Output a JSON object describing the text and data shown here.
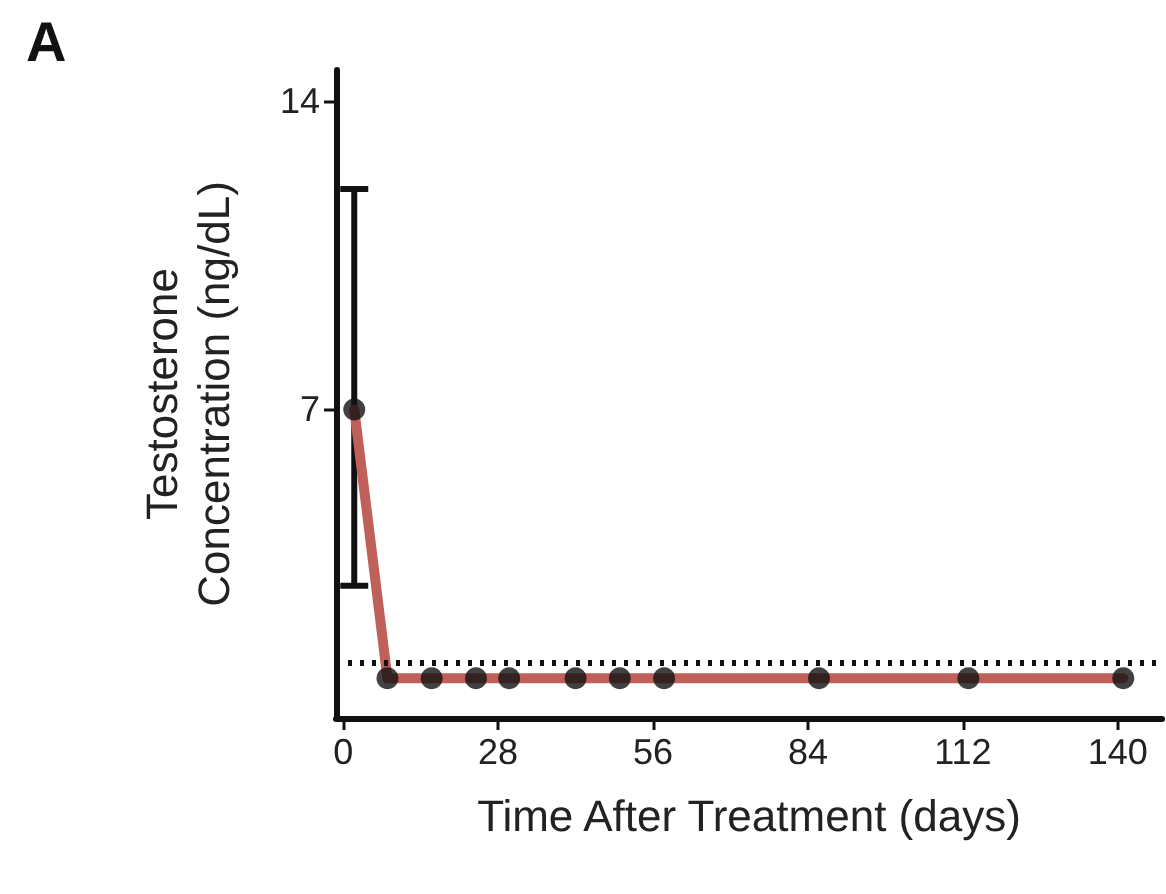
{
  "chart_data": {
    "type": "line",
    "title": "A",
    "xlabel": "Time After Treatment (days)",
    "ylabel": "Testosterone\nConcentration (ng/dL)",
    "x": [
      2,
      8,
      16,
      24,
      30,
      42,
      50,
      58,
      86,
      113,
      141
    ],
    "series": [
      {
        "color": "#c0605a",
        "marker": "none",
        "values": [
          7,
          0.9,
          0.9,
          0.9,
          0.9,
          0.9,
          0.9,
          0.9,
          0.9,
          0.9,
          0.9
        ]
      },
      {
        "type": "scatter",
        "color": "#111111",
        "marker": "circle",
        "values": [
          7,
          0.9,
          0.9,
          0.9,
          0.9,
          0.9,
          0.9,
          0.9,
          0.9,
          0.9,
          0.9
        ],
        "errors": [
          [
            3,
            12
          ],
          null,
          null,
          null,
          null,
          null,
          null,
          null,
          null,
          null,
          null
        ]
      }
    ],
    "xlim": [
      -1.3,
      148
    ],
    "xticks": [
      0,
      28,
      56,
      84,
      112,
      140
    ],
    "ylim": [
      0,
      14.7
    ],
    "yticks": [
      7,
      14
    ],
    "ref_lines": [
      {
        "axis": "y",
        "value": 1.25,
        "color": "#111111",
        "line_style": "dotted"
      }
    ],
    "grid": false
  }
}
